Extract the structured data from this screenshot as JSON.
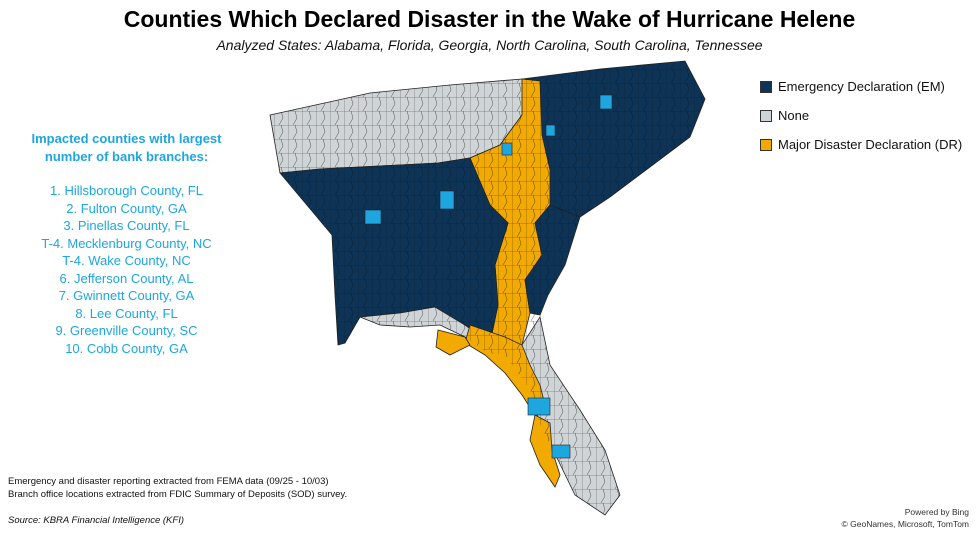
{
  "title": "Counties Which Declared Disaster in the Wake of Hurricane Helene",
  "subtitle": "Analyzed States: Alabama, Florida, Georgia, North Carolina, South Carolina, Tennessee",
  "legend": [
    {
      "label": "Emergency Declaration (EM)",
      "color": "#0D3457"
    },
    {
      "label": "None",
      "color": "#CFD4D6"
    },
    {
      "label": "Major Disaster Declaration (DR)",
      "color": "#F2A900"
    }
  ],
  "bank_list": {
    "heading_line1": "Impacted counties with largest",
    "heading_line2": "number of bank branches:",
    "items": [
      "1. Hillsborough County, FL",
      "2. Fulton County, GA",
      "3. Pinellas County, FL",
      "T-4. Mecklenburg County, NC",
      "T-4. Wake County, NC",
      "6. Jefferson County, AL",
      "7. Gwinnett County, GA",
      "8. Lee County, FL",
      "9. Greenville County, SC",
      "10. Cobb County, GA"
    ]
  },
  "notes": {
    "line1": "Emergency and disaster reporting extracted from FEMA data (09/25 - 10/03)",
    "line2": "Branch office locations extracted from FDIC Summary of Deposits (SOD) survey."
  },
  "source": "Source: KBRA Financial Intelligence (KFI)",
  "credits": {
    "line1": "Powered by Bing",
    "line2": "© GeoNames, Microsoft, TomTom"
  },
  "colors": {
    "em": "#0D3457",
    "none": "#CFD4D6",
    "dr": "#F2A900",
    "highlight": "#1EA6E0"
  }
}
